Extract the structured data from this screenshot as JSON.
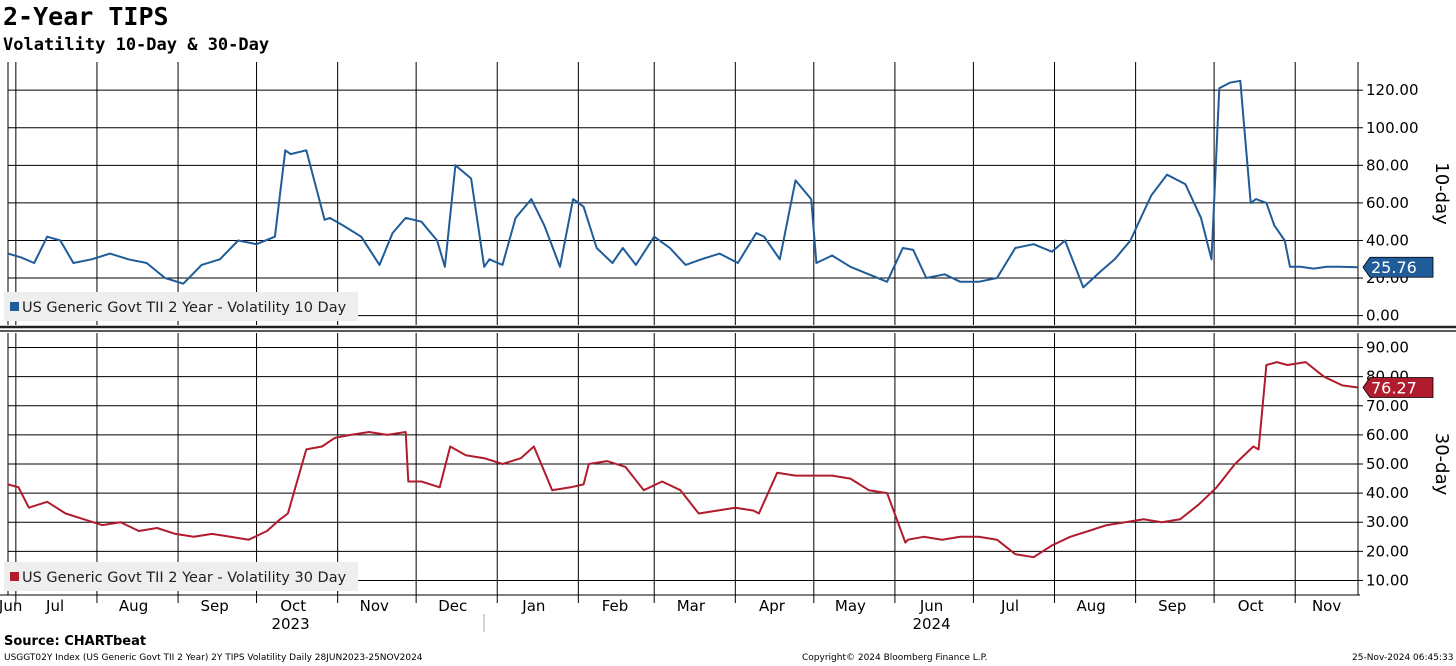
{
  "chart_data": [
    {
      "type": "line",
      "title": "2-Year TIPS",
      "subtitle": "Volatility 10-Day & 30-Day",
      "ylabel": "10-day",
      "ylim": [
        -5,
        135
      ],
      "y_ticks": [
        "0.00",
        "20.00",
        "40.00",
        "60.00",
        "80.00",
        "100.00",
        "120.00"
      ],
      "grid": true,
      "legend_position": "bottom-left",
      "series": [
        {
          "name": "US Generic Govt TII 2 Year - Volatility 10 Day",
          "color": "#1f5c99",
          "last_value_label": "25.76",
          "x": [
            "2023-06-28",
            "2023-07-03",
            "2023-07-08",
            "2023-07-13",
            "2023-07-18",
            "2023-07-23",
            "2023-07-30",
            "2023-08-06",
            "2023-08-13",
            "2023-08-20",
            "2023-08-27",
            "2023-09-03",
            "2023-09-10",
            "2023-09-17",
            "2023-09-24",
            "2023-10-01",
            "2023-10-08",
            "2023-10-12",
            "2023-10-14",
            "2023-10-20",
            "2023-10-27",
            "2023-10-29",
            "2023-11-03",
            "2023-11-10",
            "2023-11-17",
            "2023-11-22",
            "2023-11-27",
            "2023-12-03",
            "2023-12-09",
            "2023-12-12",
            "2023-12-16",
            "2023-12-22",
            "2023-12-27",
            "2023-12-29",
            "2024-01-03",
            "2024-01-08",
            "2024-01-14",
            "2024-01-19",
            "2024-01-25",
            "2024-01-30",
            "2024-02-03",
            "2024-02-08",
            "2024-02-14",
            "2024-02-18",
            "2024-02-23",
            "2024-03-01",
            "2024-03-07",
            "2024-03-13",
            "2024-03-19",
            "2024-03-26",
            "2024-04-02",
            "2024-04-09",
            "2024-04-12",
            "2024-04-18",
            "2024-04-24",
            "2024-04-30",
            "2024-05-02",
            "2024-05-08",
            "2024-05-15",
            "2024-05-22",
            "2024-05-29",
            "2024-06-04",
            "2024-06-08",
            "2024-06-13",
            "2024-06-20",
            "2024-06-26",
            "2024-07-03",
            "2024-07-10",
            "2024-07-17",
            "2024-07-24",
            "2024-07-31",
            "2024-08-05",
            "2024-08-12",
            "2024-08-19",
            "2024-08-24",
            "2024-08-30",
            "2024-09-03",
            "2024-09-07",
            "2024-09-13",
            "2024-09-20",
            "2024-09-26",
            "2024-09-30",
            "2024-10-03",
            "2024-10-07",
            "2024-10-11",
            "2024-10-15",
            "2024-10-17",
            "2024-10-21",
            "2024-10-24",
            "2024-10-28",
            "2024-10-30",
            "2024-11-03",
            "2024-11-08",
            "2024-11-13",
            "2024-11-18",
            "2024-11-25"
          ],
          "values": [
            33,
            31,
            28,
            42,
            40,
            28,
            30,
            33,
            30,
            28,
            20,
            17,
            27,
            30,
            40,
            38,
            42,
            88,
            86,
            88,
            51,
            52,
            48,
            42,
            27,
            44,
            52,
            50,
            40,
            26,
            80,
            73,
            26,
            30,
            27,
            52,
            62,
            48,
            26,
            62,
            58,
            36,
            28,
            36,
            27,
            42,
            36,
            27,
            30,
            33,
            28,
            44,
            42,
            30,
            72,
            62,
            28,
            32,
            26,
            22,
            18,
            36,
            35,
            20,
            22,
            18,
            18,
            20,
            36,
            38,
            34,
            40,
            15,
            24,
            30,
            40,
            52,
            64,
            75,
            70,
            52,
            30,
            121,
            124,
            125,
            60,
            62,
            60,
            48,
            40,
            26,
            26,
            25,
            26,
            26,
            25.76
          ]
        }
      ]
    },
    {
      "type": "line",
      "ylabel": "30-day",
      "ylim": [
        5,
        95
      ],
      "y_ticks": [
        "10.00",
        "20.00",
        "30.00",
        "40.00",
        "50.00",
        "60.00",
        "70.00",
        "80.00",
        "90.00"
      ],
      "grid": true,
      "legend_position": "bottom-left",
      "series": [
        {
          "name": "US Generic Govt TII 2 Year - Volatility 30 Day",
          "color": "#b01c2e",
          "last_value_label": "76.27",
          "x": [
            "2023-06-28",
            "2023-07-02",
            "2023-07-06",
            "2023-07-13",
            "2023-07-20",
            "2023-07-27",
            "2023-08-03",
            "2023-08-10",
            "2023-08-17",
            "2023-08-24",
            "2023-08-31",
            "2023-09-07",
            "2023-09-14",
            "2023-09-21",
            "2023-09-28",
            "2023-10-05",
            "2023-10-10",
            "2023-10-13",
            "2023-10-20",
            "2023-10-26",
            "2023-10-31",
            "2023-11-06",
            "2023-11-13",
            "2023-11-20",
            "2023-11-27",
            "2023-11-28",
            "2023-12-03",
            "2023-12-10",
            "2023-12-14",
            "2023-12-20",
            "2023-12-27",
            "2024-01-03",
            "2024-01-10",
            "2024-01-15",
            "2024-01-22",
            "2024-01-29",
            "2024-02-03",
            "2024-02-05",
            "2024-02-12",
            "2024-02-19",
            "2024-02-26",
            "2024-03-04",
            "2024-03-11",
            "2024-03-18",
            "2024-03-25",
            "2024-04-01",
            "2024-04-08",
            "2024-04-10",
            "2024-04-17",
            "2024-04-24",
            "2024-05-01",
            "2024-05-08",
            "2024-05-15",
            "2024-05-22",
            "2024-05-29",
            "2024-06-05",
            "2024-06-06",
            "2024-06-12",
            "2024-06-19",
            "2024-06-26",
            "2024-07-03",
            "2024-07-10",
            "2024-07-17",
            "2024-07-24",
            "2024-07-31",
            "2024-08-07",
            "2024-08-14",
            "2024-08-21",
            "2024-08-28",
            "2024-09-04",
            "2024-09-11",
            "2024-09-18",
            "2024-09-25",
            "2024-10-02",
            "2024-10-09",
            "2024-10-16",
            "2024-10-18",
            "2024-10-21",
            "2024-10-25",
            "2024-10-29",
            "2024-11-05",
            "2024-11-12",
            "2024-11-19",
            "2024-11-25"
          ],
          "values": [
            43,
            42,
            35,
            37,
            33,
            31,
            29,
            30,
            27,
            28,
            26,
            25,
            26,
            25,
            24,
            27,
            31,
            33,
            55,
            56,
            59,
            60,
            61,
            60,
            61,
            44,
            44,
            42,
            56,
            53,
            52,
            50,
            52,
            56,
            41,
            42,
            43,
            50,
            51,
            49,
            41,
            44,
            41,
            33,
            34,
            35,
            34,
            33,
            47,
            46,
            46,
            46,
            45,
            41,
            40,
            23,
            24,
            25,
            24,
            25,
            25,
            24,
            19,
            18,
            22,
            25,
            27,
            29,
            30,
            31,
            30,
            31,
            36,
            42,
            50,
            56,
            55,
            84,
            85,
            84,
            85,
            80,
            77,
            76.27
          ]
        }
      ]
    }
  ],
  "x_axis": {
    "month_labels": [
      "Jun",
      "Jul",
      "Aug",
      "Sep",
      "Oct",
      "Nov",
      "Dec",
      "Jan",
      "Feb",
      "Mar",
      "Apr",
      "May",
      "Jun",
      "Jul",
      "Aug",
      "Sep",
      "Oct",
      "Nov"
    ],
    "year_labels": [
      "2023",
      "2024"
    ]
  },
  "footer": {
    "source": "Source: CHARTbeat",
    "description": "USGGT02Y Index (US Generic Govt TII 2 Year) 2Y TIPS Volatility  Daily 28JUN2023-25NOV2024",
    "copyright": "Copyright© 2024 Bloomberg Finance L.P.",
    "timestamp": "25-Nov-2024 06:45:33"
  }
}
